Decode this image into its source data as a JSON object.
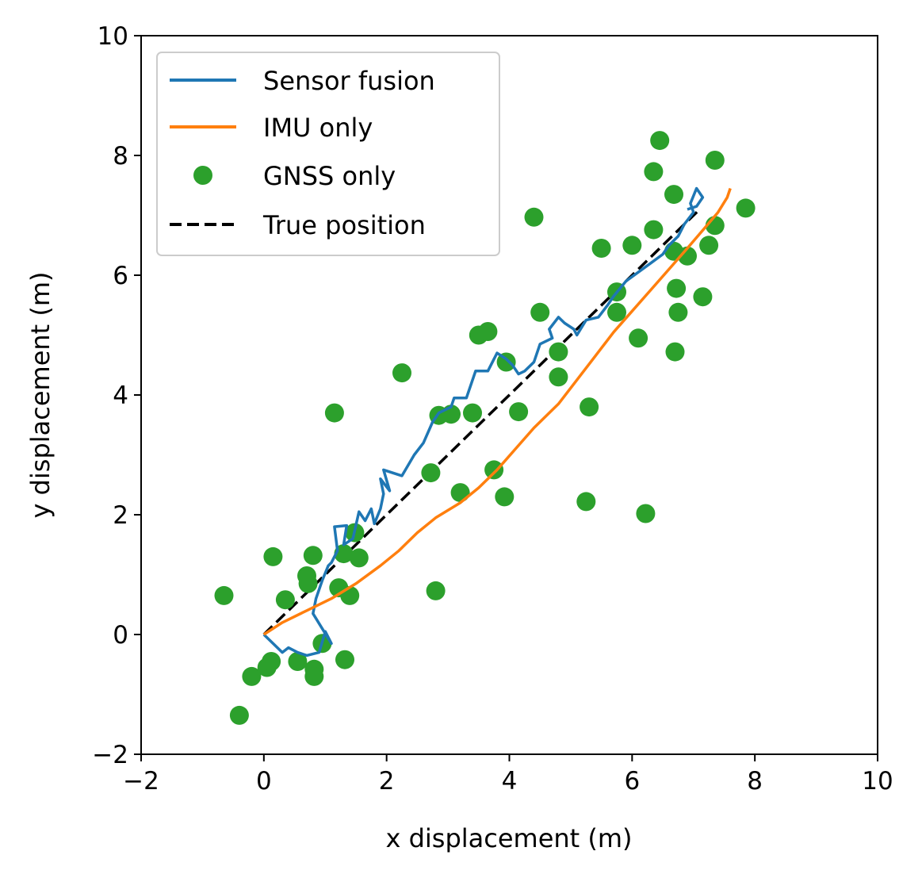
{
  "chart_data": {
    "type": "scatter",
    "title": "",
    "xlabel": "x displacement (m)",
    "ylabel": "y displacement (m)",
    "xlim": [
      -2,
      10
    ],
    "ylim": [
      -2,
      10
    ],
    "x_ticks": [
      -2,
      0,
      2,
      4,
      6,
      8,
      10
    ],
    "y_ticks": [
      -2,
      0,
      2,
      4,
      6,
      8,
      10
    ],
    "x_tick_labels": [
      "−2",
      "0",
      "2",
      "4",
      "6",
      "8",
      "10"
    ],
    "y_tick_labels": [
      "−2",
      "0",
      "2",
      "4",
      "6",
      "8",
      "10"
    ],
    "grid": false,
    "legend_position": "upper-left",
    "series": [
      {
        "name": "Sensor fusion",
        "kind": "line",
        "style": "solid",
        "color": "#1f77b4",
        "points": [
          [
            0.0,
            0.0
          ],
          [
            0.15,
            -0.15
          ],
          [
            0.3,
            -0.3
          ],
          [
            0.4,
            -0.22
          ],
          [
            0.55,
            -0.3
          ],
          [
            0.7,
            -0.35
          ],
          [
            0.9,
            -0.3
          ],
          [
            1.0,
            0.05
          ],
          [
            1.1,
            -0.15
          ],
          [
            0.8,
            0.35
          ],
          [
            0.85,
            0.6
          ],
          [
            0.95,
            0.9
          ],
          [
            1.05,
            1.15
          ],
          [
            1.1,
            1.2
          ],
          [
            1.2,
            1.4
          ],
          [
            1.15,
            1.8
          ],
          [
            1.35,
            1.82
          ],
          [
            1.3,
            1.5
          ],
          [
            1.45,
            1.6
          ],
          [
            1.55,
            2.05
          ],
          [
            1.65,
            1.9
          ],
          [
            1.75,
            2.1
          ],
          [
            1.8,
            1.85
          ],
          [
            1.9,
            2.1
          ],
          [
            1.95,
            2.35
          ],
          [
            1.9,
            2.6
          ],
          [
            2.05,
            2.4
          ],
          [
            1.95,
            2.75
          ],
          [
            2.25,
            2.65
          ],
          [
            2.45,
            3.0
          ],
          [
            2.6,
            3.2
          ],
          [
            2.75,
            3.55
          ],
          [
            2.85,
            3.7
          ],
          [
            3.05,
            3.8
          ],
          [
            3.1,
            3.95
          ],
          [
            3.3,
            3.95
          ],
          [
            3.45,
            4.4
          ],
          [
            3.65,
            4.4
          ],
          [
            3.8,
            4.7
          ],
          [
            3.95,
            4.6
          ],
          [
            4.05,
            4.5
          ],
          [
            4.15,
            4.35
          ],
          [
            4.25,
            4.4
          ],
          [
            4.4,
            4.55
          ],
          [
            4.5,
            4.85
          ],
          [
            4.7,
            4.95
          ],
          [
            4.65,
            5.1
          ],
          [
            4.8,
            5.3
          ],
          [
            4.9,
            5.2
          ],
          [
            5.05,
            5.1
          ],
          [
            5.1,
            5.0
          ],
          [
            5.25,
            5.25
          ],
          [
            5.45,
            5.3
          ],
          [
            5.6,
            5.5
          ],
          [
            5.7,
            5.65
          ],
          [
            5.9,
            5.9
          ],
          [
            6.1,
            6.05
          ],
          [
            6.3,
            6.2
          ],
          [
            6.5,
            6.35
          ],
          [
            6.6,
            6.5
          ],
          [
            6.75,
            6.65
          ],
          [
            6.85,
            6.85
          ],
          [
            7.0,
            7.05
          ],
          [
            6.95,
            7.2
          ],
          [
            7.05,
            7.45
          ],
          [
            7.15,
            7.3
          ],
          [
            7.05,
            7.15
          ],
          [
            6.9,
            7.1
          ]
        ]
      },
      {
        "name": "IMU only",
        "kind": "line",
        "style": "solid",
        "color": "#ff7f0e",
        "points": [
          [
            0.0,
            0.0
          ],
          [
            0.3,
            0.2
          ],
          [
            0.7,
            0.4
          ],
          [
            1.1,
            0.6
          ],
          [
            1.5,
            0.85
          ],
          [
            1.9,
            1.15
          ],
          [
            2.2,
            1.4
          ],
          [
            2.5,
            1.7
          ],
          [
            2.8,
            1.95
          ],
          [
            3.2,
            2.2
          ],
          [
            3.5,
            2.45
          ],
          [
            3.8,
            2.75
          ],
          [
            4.1,
            3.1
          ],
          [
            4.4,
            3.45
          ],
          [
            4.8,
            3.85
          ],
          [
            5.1,
            4.25
          ],
          [
            5.4,
            4.65
          ],
          [
            5.7,
            5.05
          ],
          [
            6.0,
            5.4
          ],
          [
            6.3,
            5.75
          ],
          [
            6.6,
            6.1
          ],
          [
            6.9,
            6.45
          ],
          [
            7.15,
            6.75
          ],
          [
            7.4,
            7.05
          ],
          [
            7.55,
            7.3
          ],
          [
            7.6,
            7.45
          ]
        ]
      },
      {
        "name": "GNSS only",
        "kind": "scatter",
        "marker": "circle",
        "color": "#2ca02c",
        "points": [
          [
            -0.65,
            0.65
          ],
          [
            -0.4,
            -1.35
          ],
          [
            -0.2,
            -0.7
          ],
          [
            0.05,
            -0.55
          ],
          [
            0.12,
            -0.45
          ],
          [
            0.15,
            1.3
          ],
          [
            0.35,
            0.58
          ],
          [
            0.55,
            -0.45
          ],
          [
            0.7,
            0.98
          ],
          [
            0.72,
            0.85
          ],
          [
            0.8,
            1.32
          ],
          [
            0.82,
            -0.58
          ],
          [
            0.82,
            -0.7
          ],
          [
            0.95,
            -0.15
          ],
          [
            1.15,
            3.7
          ],
          [
            1.22,
            0.78
          ],
          [
            1.3,
            1.35
          ],
          [
            1.32,
            -0.42
          ],
          [
            1.4,
            0.65
          ],
          [
            1.48,
            1.7
          ],
          [
            1.55,
            1.28
          ],
          [
            2.25,
            4.37
          ],
          [
            2.72,
            2.7
          ],
          [
            2.8,
            0.73
          ],
          [
            2.85,
            3.66
          ],
          [
            3.05,
            3.68
          ],
          [
            3.2,
            2.37
          ],
          [
            3.4,
            3.7
          ],
          [
            3.5,
            5.0
          ],
          [
            3.65,
            5.06
          ],
          [
            3.75,
            2.75
          ],
          [
            3.92,
            2.3
          ],
          [
            3.95,
            4.55
          ],
          [
            4.15,
            3.72
          ],
          [
            4.4,
            6.97
          ],
          [
            4.5,
            5.38
          ],
          [
            4.8,
            4.72
          ],
          [
            4.8,
            4.3
          ],
          [
            5.3,
            3.8
          ],
          [
            5.25,
            2.22
          ],
          [
            5.5,
            6.45
          ],
          [
            5.75,
            5.72
          ],
          [
            5.75,
            5.38
          ],
          [
            6.0,
            6.5
          ],
          [
            6.1,
            4.95
          ],
          [
            6.22,
            2.02
          ],
          [
            6.35,
            7.73
          ],
          [
            6.35,
            6.76
          ],
          [
            6.45,
            8.25
          ],
          [
            6.68,
            7.35
          ],
          [
            6.68,
            6.4
          ],
          [
            6.7,
            4.72
          ],
          [
            6.72,
            5.78
          ],
          [
            6.75,
            5.38
          ],
          [
            6.9,
            6.32
          ],
          [
            7.15,
            5.64
          ],
          [
            7.25,
            6.5
          ],
          [
            7.35,
            6.83
          ],
          [
            7.35,
            7.92
          ],
          [
            7.85,
            7.12
          ]
        ]
      },
      {
        "name": "True position",
        "kind": "line",
        "style": "dashed",
        "color": "#000000",
        "points": [
          [
            0.0,
            0.0
          ],
          [
            7.1,
            7.1
          ]
        ]
      }
    ]
  }
}
